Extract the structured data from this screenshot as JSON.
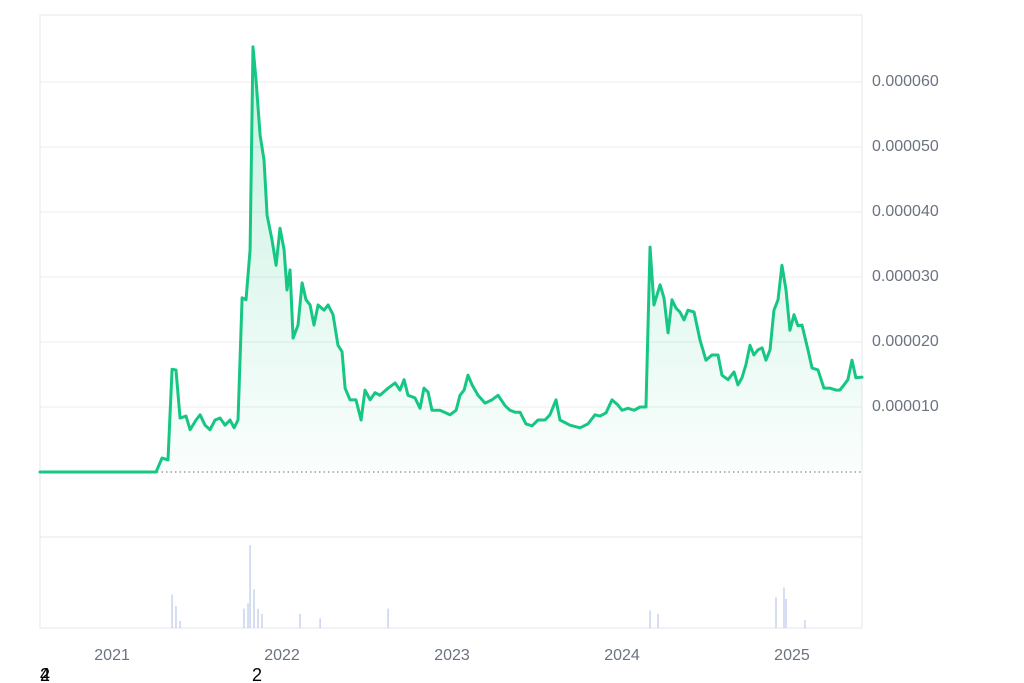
{
  "chart_data": {
    "type": "line",
    "grid": true,
    "series": [
      {
        "color": "#16c784",
        "x": [
          2020.576,
          2021.259,
          2021.294,
          2021.329,
          2021.353,
          2021.376,
          2021.4,
          2021.435,
          2021.459,
          2021.494,
          2021.518,
          2021.547,
          2021.576,
          2021.606,
          2021.635,
          2021.665,
          2021.694,
          2021.718,
          2021.741,
          2021.765,
          2021.788,
          2021.812,
          2021.829,
          2021.847,
          2021.871,
          2021.894,
          2021.912,
          2021.941,
          2021.965,
          2021.988,
          2022.012,
          2022.029,
          2022.047,
          2022.065,
          2022.094,
          2022.118,
          2022.141,
          2022.165,
          2022.188,
          2022.212,
          2022.247,
          2022.271,
          2022.3,
          2022.329,
          2022.353,
          2022.371,
          2022.4,
          2022.435,
          2022.465,
          2022.488,
          2022.518,
          2022.547,
          2022.576,
          2022.624,
          2022.665,
          2022.694,
          2022.718,
          2022.741,
          2022.782,
          2022.812,
          2022.835,
          2022.859,
          2022.882,
          2022.929,
          2022.988,
          2023.024,
          2023.047,
          2023.071,
          2023.094,
          2023.118,
          2023.153,
          2023.194,
          2023.235,
          2023.271,
          2023.312,
          2023.341,
          2023.371,
          2023.4,
          2023.435,
          2023.471,
          2023.506,
          2023.547,
          2023.576,
          2023.612,
          2023.635,
          2023.694,
          2023.753,
          2023.8,
          2023.841,
          2023.871,
          2023.906,
          2023.941,
          2023.976,
          2024.0,
          2024.035,
          2024.071,
          2024.106,
          2024.141,
          2024.165,
          2024.188,
          2024.224,
          2024.247,
          2024.271,
          2024.294,
          2024.318,
          2024.341,
          2024.365,
          2024.388,
          2024.424,
          2024.459,
          2024.494,
          2024.529,
          2024.565,
          2024.588,
          2024.624,
          2024.659,
          2024.682,
          2024.706,
          2024.729,
          2024.753,
          2024.776,
          2024.8,
          2024.824,
          2024.847,
          2024.871,
          2024.894,
          2024.918,
          2024.941,
          2024.965,
          2024.988,
          2025.012,
          2025.035,
          2025.059,
          2025.094,
          2025.118,
          2025.153,
          2025.188,
          2025.224,
          2025.259,
          2025.282,
          2025.306,
          2025.329,
          2025.353,
          2025.376,
          2025.412
        ],
        "values": [
          1e-08,
          1e-08,
          2.15e-06,
          1.85e-06,
          1.58e-05,
          1.57e-05,
          8.3e-06,
          8.6e-06,
          6.5e-06,
          8e-06,
          8.8e-06,
          7.2e-06,
          6.5e-06,
          8e-06,
          8.3e-06,
          7.2e-06,
          8e-06,
          6.8e-06,
          8e-06,
          2.68e-05,
          2.65e-05,
          3.42e-05,
          6.54e-05,
          6.03e-05,
          5.18e-05,
          4.8e-05,
          3.95e-05,
          3.57e-05,
          3.18e-05,
          3.75e-05,
          3.42e-05,
          2.8e-05,
          3.11e-05,
          2.06e-05,
          2.26e-05,
          2.91e-05,
          2.65e-05,
          2.57e-05,
          2.26e-05,
          2.57e-05,
          2.49e-05,
          2.57e-05,
          2.42e-05,
          1.95e-05,
          1.85e-05,
          1.29e-05,
          1.11e-05,
          1.11e-05,
          8e-06,
          1.26e-05,
          1.11e-05,
          1.22e-05,
          1.18e-05,
          1.29e-05,
          1.37e-05,
          1.26e-05,
          1.42e-05,
          1.18e-05,
          1.14e-05,
          9.8e-06,
          1.29e-05,
          1.23e-05,
          9.5e-06,
          9.5e-06,
          8.8e-06,
          9.5e-06,
          1.18e-05,
          1.26e-05,
          1.49e-05,
          1.34e-05,
          1.18e-05,
          1.06e-05,
          1.11e-05,
          1.18e-05,
          1.02e-05,
          9.5e-06,
          9.2e-06,
          9.2e-06,
          7.4e-06,
          7.1e-06,
          8e-06,
          8e-06,
          8.8e-06,
          1.11e-05,
          8e-06,
          7.2e-06,
          6.8e-06,
          7.4e-06,
          8.8e-06,
          8.6e-06,
          9.1e-06,
          1.11e-05,
          1.03e-05,
          9.5e-06,
          9.8e-06,
          9.5e-06,
          1e-05,
          1e-05,
          3.46e-05,
          2.57e-05,
          2.88e-05,
          2.68e-05,
          2.14e-05,
          2.65e-05,
          2.52e-05,
          2.46e-05,
          2.34e-05,
          2.49e-05,
          2.46e-05,
          2.03e-05,
          1.72e-05,
          1.8e-05,
          1.8e-05,
          1.49e-05,
          1.42e-05,
          1.54e-05,
          1.34e-05,
          1.45e-05,
          1.65e-05,
          1.95e-05,
          1.8e-05,
          1.88e-05,
          1.91e-05,
          1.72e-05,
          1.88e-05,
          2.49e-05,
          2.65e-05,
          3.18e-05,
          2.8e-05,
          2.18e-05,
          2.42e-05,
          2.25e-05,
          2.26e-05,
          1.88e-05,
          1.6e-05,
          1.57e-05,
          1.29e-05,
          1.29e-05,
          1.26e-05,
          1.26e-05,
          1.34e-05,
          1.42e-05,
          1.72e-05,
          1.45e-05,
          1.46e-05
        ]
      }
    ],
    "volume": {
      "color": "#c9d3ee",
      "x": [
        2021.353,
        2021.376,
        2021.4,
        2021.776,
        2021.8,
        2021.812,
        2021.835,
        2021.859,
        2021.882,
        2022.106,
        2022.224,
        2022.624,
        2024.165,
        2024.212,
        2024.906,
        2024.953,
        2024.965,
        2025.076
      ],
      "values": [
        38,
        25,
        8,
        22,
        28,
        94,
        44,
        22,
        16,
        16,
        11,
        22,
        20,
        16,
        35,
        46,
        33,
        9
      ],
      "vlim": [
        0,
        100
      ]
    },
    "xlim": [
      2020.576,
      2025.412
    ],
    "xticks": [
      2021,
      2022,
      2023,
      2024,
      2025
    ],
    "ylim": [
      -1e-05,
      7e-05
    ],
    "yticks": [
      {
        "value": 1e-05,
        "label": "0.000010"
      },
      {
        "value": 2e-05,
        "label": "0.000020"
      },
      {
        "value": 3e-05,
        "label": "0.000030"
      },
      {
        "value": 4e-05,
        "label": "0.000040"
      },
      {
        "value": 5e-05,
        "label": "0.000050"
      },
      {
        "value": 6e-05,
        "label": "0.000060"
      }
    ],
    "annotations": [
      "2",
      "4",
      "2"
    ]
  }
}
